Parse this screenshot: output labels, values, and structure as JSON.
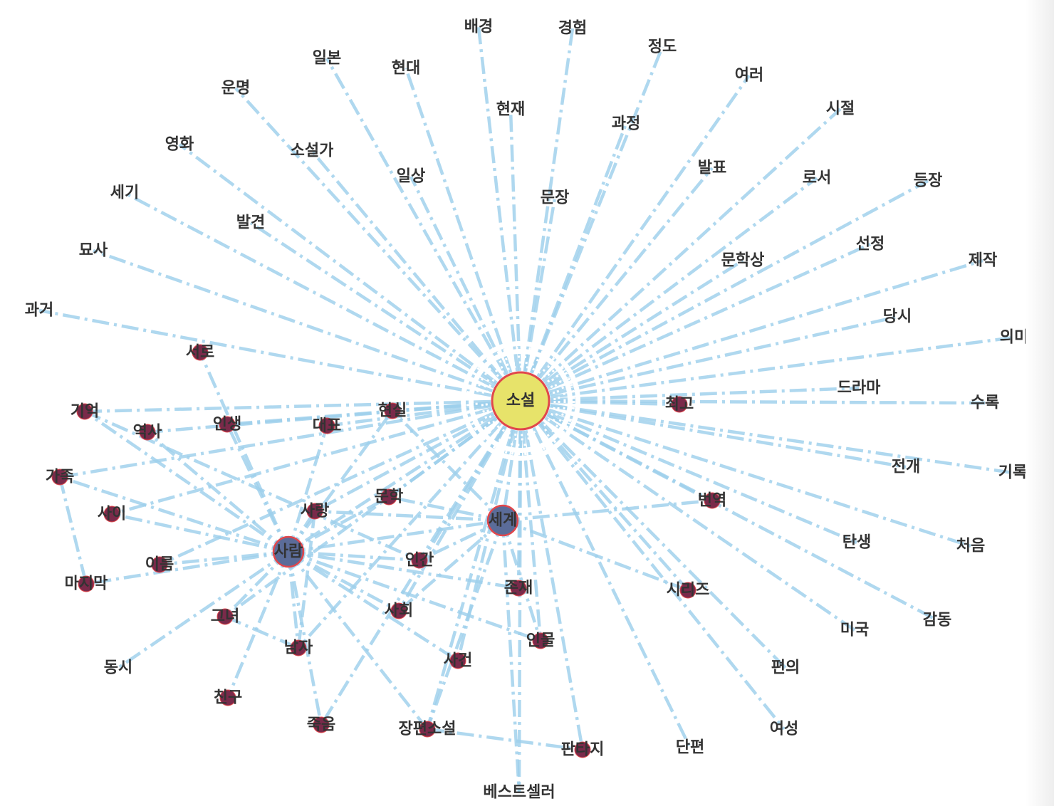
{
  "network": {
    "colors": {
      "edge": "#9ed0ec",
      "hub_fill": "#e7e36a",
      "hub_stroke": "#e0474c",
      "major_fill": "#5b6c99",
      "minor_fill": "#7a2a4a",
      "label": "#333333"
    },
    "nodes": [
      {
        "id": "소설",
        "label": "소설",
        "kind": "hub"
      },
      {
        "id": "사람",
        "label": "사람",
        "kind": "major"
      },
      {
        "id": "세계",
        "label": "세계",
        "kind": "major"
      },
      {
        "id": "사랑",
        "label": "사랑",
        "kind": "minor"
      },
      {
        "id": "문학",
        "label": "문학",
        "kind": "minor"
      },
      {
        "id": "인간",
        "label": "인간",
        "kind": "minor"
      },
      {
        "id": "현실",
        "label": "현실",
        "kind": "minor"
      },
      {
        "id": "대표",
        "label": "대표",
        "kind": "minor"
      },
      {
        "id": "인생",
        "label": "인생",
        "kind": "minor"
      },
      {
        "id": "역사",
        "label": "역사",
        "kind": "minor"
      },
      {
        "id": "기억",
        "label": "기억",
        "kind": "minor"
      },
      {
        "id": "서로",
        "label": "서로",
        "kind": "minor"
      },
      {
        "id": "가족",
        "label": "가족",
        "kind": "minor"
      },
      {
        "id": "사이",
        "label": "사이",
        "kind": "minor"
      },
      {
        "id": "이름",
        "label": "이름",
        "kind": "minor"
      },
      {
        "id": "마지막",
        "label": "마지막",
        "kind": "minor"
      },
      {
        "id": "그녀",
        "label": "그녀",
        "kind": "minor"
      },
      {
        "id": "남자",
        "label": "남자",
        "kind": "minor"
      },
      {
        "id": "친구",
        "label": "친구",
        "kind": "minor"
      },
      {
        "id": "죽음",
        "label": "죽음",
        "kind": "minor"
      },
      {
        "id": "장편소설",
        "label": "장편소설",
        "kind": "minor"
      },
      {
        "id": "사건",
        "label": "사건",
        "kind": "minor"
      },
      {
        "id": "사회",
        "label": "사회",
        "kind": "minor"
      },
      {
        "id": "존재",
        "label": "존재",
        "kind": "minor"
      },
      {
        "id": "인물",
        "label": "인물",
        "kind": "minor"
      },
      {
        "id": "판타지",
        "label": "판타지",
        "kind": "minor"
      },
      {
        "id": "최고",
        "label": "최고",
        "kind": "minor"
      },
      {
        "id": "번역",
        "label": "번역",
        "kind": "minor"
      },
      {
        "id": "시리즈",
        "label": "시리즈",
        "kind": "minor"
      },
      {
        "id": "배경",
        "label": "배경",
        "kind": "leaf"
      },
      {
        "id": "경험",
        "label": "경험",
        "kind": "leaf"
      },
      {
        "id": "정도",
        "label": "정도",
        "kind": "leaf"
      },
      {
        "id": "일본",
        "label": "일본",
        "kind": "leaf"
      },
      {
        "id": "현대",
        "label": "현대",
        "kind": "leaf"
      },
      {
        "id": "여러",
        "label": "여러",
        "kind": "leaf"
      },
      {
        "id": "운명",
        "label": "운명",
        "kind": "leaf"
      },
      {
        "id": "현재",
        "label": "현재",
        "kind": "leaf"
      },
      {
        "id": "시절",
        "label": "시절",
        "kind": "leaf"
      },
      {
        "id": "과정",
        "label": "과정",
        "kind": "leaf"
      },
      {
        "id": "영화",
        "label": "영화",
        "kind": "leaf"
      },
      {
        "id": "소설가",
        "label": "소설가",
        "kind": "leaf"
      },
      {
        "id": "발표",
        "label": "발표",
        "kind": "leaf"
      },
      {
        "id": "일상",
        "label": "일상",
        "kind": "leaf"
      },
      {
        "id": "로서",
        "label": "로서",
        "kind": "leaf"
      },
      {
        "id": "등장",
        "label": "등장",
        "kind": "leaf"
      },
      {
        "id": "세기",
        "label": "세기",
        "kind": "leaf"
      },
      {
        "id": "문장",
        "label": "문장",
        "kind": "leaf"
      },
      {
        "id": "발견",
        "label": "발견",
        "kind": "leaf"
      },
      {
        "id": "선정",
        "label": "선정",
        "kind": "leaf"
      },
      {
        "id": "묘사",
        "label": "묘사",
        "kind": "leaf"
      },
      {
        "id": "문학상",
        "label": "문학상",
        "kind": "leaf"
      },
      {
        "id": "제작",
        "label": "제작",
        "kind": "leaf"
      },
      {
        "id": "과거",
        "label": "과거",
        "kind": "leaf"
      },
      {
        "id": "당시",
        "label": "당시",
        "kind": "leaf"
      },
      {
        "id": "의미",
        "label": "의미",
        "kind": "leaf"
      },
      {
        "id": "드라마",
        "label": "드라마",
        "kind": "leaf"
      },
      {
        "id": "수록",
        "label": "수록",
        "kind": "leaf"
      },
      {
        "id": "전개",
        "label": "전개",
        "kind": "leaf"
      },
      {
        "id": "기록",
        "label": "기록",
        "kind": "leaf"
      },
      {
        "id": "탄생",
        "label": "탄생",
        "kind": "leaf"
      },
      {
        "id": "처음",
        "label": "처음",
        "kind": "leaf"
      },
      {
        "id": "감동",
        "label": "감동",
        "kind": "leaf"
      },
      {
        "id": "미국",
        "label": "미국",
        "kind": "leaf"
      },
      {
        "id": "편의",
        "label": "편의",
        "kind": "leaf"
      },
      {
        "id": "여성",
        "label": "여성",
        "kind": "leaf"
      },
      {
        "id": "단편",
        "label": "단편",
        "kind": "leaf"
      },
      {
        "id": "베스트셀러",
        "label": "베스트셀러",
        "kind": "leaf"
      },
      {
        "id": "동시",
        "label": "동시",
        "kind": "leaf"
      }
    ],
    "edges": [
      [
        "소설",
        "배경"
      ],
      [
        "소설",
        "경험"
      ],
      [
        "소설",
        "정도"
      ],
      [
        "소설",
        "일본"
      ],
      [
        "소설",
        "현대"
      ],
      [
        "소설",
        "여러"
      ],
      [
        "소설",
        "운명"
      ],
      [
        "소설",
        "현재"
      ],
      [
        "소설",
        "시절"
      ],
      [
        "소설",
        "과정"
      ],
      [
        "소설",
        "영화"
      ],
      [
        "소설",
        "소설가"
      ],
      [
        "소설",
        "발표"
      ],
      [
        "소설",
        "일상"
      ],
      [
        "소설",
        "로서"
      ],
      [
        "소설",
        "등장"
      ],
      [
        "소설",
        "세기"
      ],
      [
        "소설",
        "문장"
      ],
      [
        "소설",
        "발견"
      ],
      [
        "소설",
        "선정"
      ],
      [
        "소설",
        "묘사"
      ],
      [
        "소설",
        "문학상"
      ],
      [
        "소설",
        "제작"
      ],
      [
        "소설",
        "과거"
      ],
      [
        "소설",
        "당시"
      ],
      [
        "소설",
        "의미"
      ],
      [
        "소설",
        "드라마"
      ],
      [
        "소설",
        "수록"
      ],
      [
        "소설",
        "전개"
      ],
      [
        "소설",
        "기록"
      ],
      [
        "소설",
        "탄생"
      ],
      [
        "소설",
        "처음"
      ],
      [
        "소설",
        "감동"
      ],
      [
        "소설",
        "미국"
      ],
      [
        "소설",
        "편의"
      ],
      [
        "소설",
        "여성"
      ],
      [
        "소설",
        "단편"
      ],
      [
        "소설",
        "베스트셀러"
      ],
      [
        "소설",
        "판타지"
      ],
      [
        "소설",
        "최고"
      ],
      [
        "소설",
        "번역"
      ],
      [
        "소설",
        "시리즈"
      ],
      [
        "소설",
        "인물"
      ],
      [
        "소설",
        "존재"
      ],
      [
        "소설",
        "사건"
      ],
      [
        "소설",
        "사회"
      ],
      [
        "소설",
        "인간"
      ],
      [
        "소설",
        "문학"
      ],
      [
        "소설",
        "사랑"
      ],
      [
        "소설",
        "현실"
      ],
      [
        "소설",
        "대표"
      ],
      [
        "소설",
        "인생"
      ],
      [
        "소설",
        "역사"
      ],
      [
        "소설",
        "기억"
      ],
      [
        "소설",
        "가족"
      ],
      [
        "소설",
        "사이"
      ],
      [
        "소설",
        "사람"
      ],
      [
        "소설",
        "세계"
      ],
      [
        "소설",
        "장편소설"
      ],
      [
        "소설",
        "남자"
      ],
      [
        "소설",
        "그녀"
      ],
      [
        "소설",
        "죽음"
      ],
      [
        "소설",
        "이름"
      ],
      [
        "사람",
        "사랑"
      ],
      [
        "사람",
        "문학"
      ],
      [
        "사람",
        "인간"
      ],
      [
        "사람",
        "세계"
      ],
      [
        "사람",
        "현실"
      ],
      [
        "사람",
        "대표"
      ],
      [
        "사람",
        "인생"
      ],
      [
        "사람",
        "역사"
      ],
      [
        "사람",
        "기억"
      ],
      [
        "사람",
        "서로"
      ],
      [
        "사람",
        "가족"
      ],
      [
        "사람",
        "사이"
      ],
      [
        "사람",
        "이름"
      ],
      [
        "사람",
        "마지막"
      ],
      [
        "사람",
        "그녀"
      ],
      [
        "사람",
        "남자"
      ],
      [
        "사람",
        "친구"
      ],
      [
        "사람",
        "죽음"
      ],
      [
        "사람",
        "장편소설"
      ],
      [
        "사람",
        "사건"
      ],
      [
        "사람",
        "사회"
      ],
      [
        "사람",
        "존재"
      ],
      [
        "사람",
        "인물"
      ],
      [
        "사람",
        "동시"
      ],
      [
        "세계",
        "번역"
      ],
      [
        "세계",
        "베스트셀러"
      ],
      [
        "세계",
        "장편소설"
      ],
      [
        "세계",
        "사회"
      ],
      [
        "세계",
        "인간"
      ],
      [
        "세계",
        "문학"
      ],
      [
        "세계",
        "사랑"
      ],
      [
        "세계",
        "현실"
      ],
      [
        "세계",
        "인물"
      ],
      [
        "세계",
        "시리즈"
      ],
      [
        "장편소설",
        "판타지"
      ],
      [
        "가족",
        "마지막"
      ],
      [
        "기억",
        "인간"
      ],
      [
        "그녀",
        "남자"
      ],
      [
        "사랑",
        "남자"
      ]
    ]
  }
}
